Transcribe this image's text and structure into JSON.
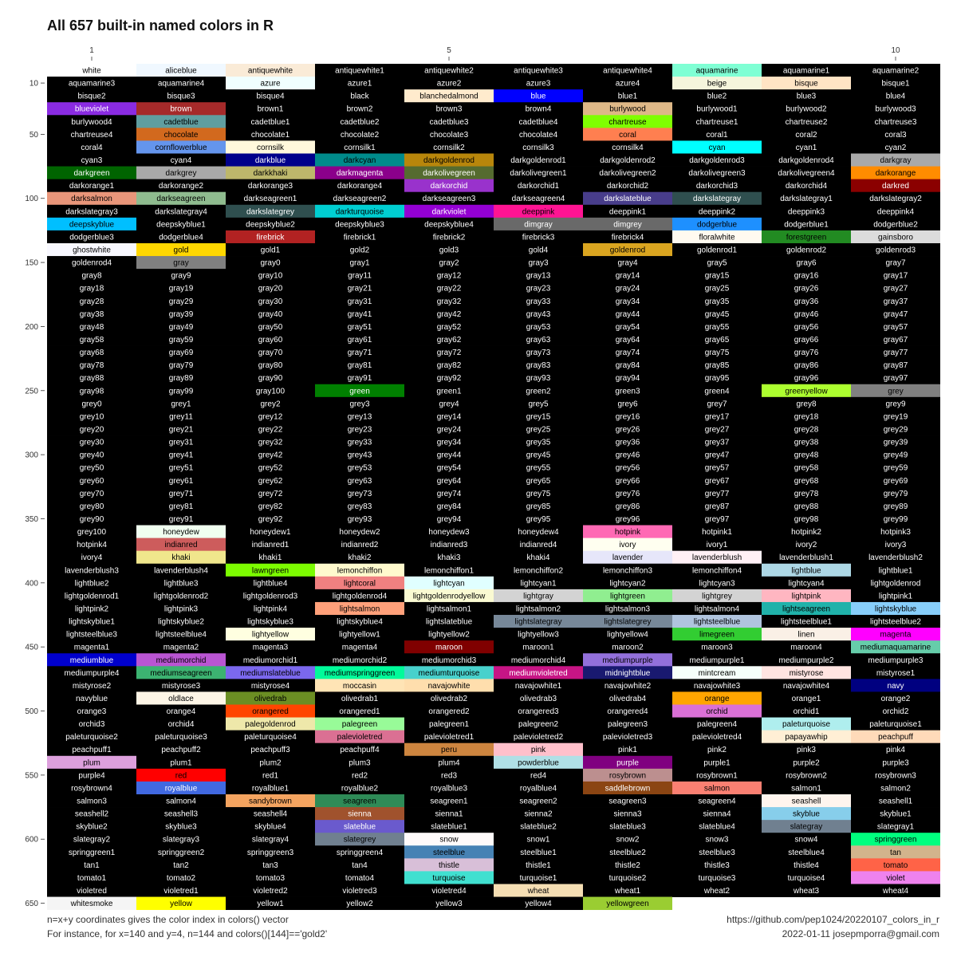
{
  "chart_data": {
    "type": "heatmap",
    "title": "All 657 built-in named colors in R",
    "x_ticks": [
      "1",
      "5",
      "10"
    ],
    "y_ticks": [
      "10",
      "50",
      "100",
      "150",
      "200",
      "250",
      "300",
      "350",
      "400",
      "450",
      "500",
      "550",
      "600",
      "650"
    ],
    "n_columns": 10,
    "n_colors": 657,
    "colors": [
      "white",
      "aliceblue",
      "antiquewhite",
      "antiquewhite1",
      "antiquewhite2",
      "antiquewhite3",
      "antiquewhite4",
      "aquamarine",
      "aquamarine1",
      "aquamarine2",
      "aquamarine3",
      "aquamarine4",
      "azure",
      "azure1",
      "azure2",
      "azure3",
      "azure4",
      "beige",
      "bisque",
      "bisque1",
      "bisque2",
      "bisque3",
      "bisque4",
      "black",
      "blanchedalmond",
      "blue",
      "blue1",
      "blue2",
      "blue3",
      "blue4",
      "blueviolet",
      "brown",
      "brown1",
      "brown2",
      "brown3",
      "brown4",
      "burlywood",
      "burlywood1",
      "burlywood2",
      "burlywood3",
      "burlywood4",
      "cadetblue",
      "cadetblue1",
      "cadetblue2",
      "cadetblue3",
      "cadetblue4",
      "chartreuse",
      "chartreuse1",
      "chartreuse2",
      "chartreuse3",
      "chartreuse4",
      "chocolate",
      "chocolate1",
      "chocolate2",
      "chocolate3",
      "chocolate4",
      "coral",
      "coral1",
      "coral2",
      "coral3",
      "coral4",
      "cornflowerblue",
      "cornsilk",
      "cornsilk1",
      "cornsilk2",
      "cornsilk3",
      "cornsilk4",
      "cyan",
      "cyan1",
      "cyan2",
      "cyan3",
      "cyan4",
      "darkblue",
      "darkcyan",
      "darkgoldenrod",
      "darkgoldenrod1",
      "darkgoldenrod2",
      "darkgoldenrod3",
      "darkgoldenrod4",
      "darkgray",
      "darkgreen",
      "darkgrey",
      "darkkhaki",
      "darkmagenta",
      "darkolivegreen",
      "darkolivegreen1",
      "darkolivegreen2",
      "darkolivegreen3",
      "darkolivegreen4",
      "darkorange",
      "darkorange1",
      "darkorange2",
      "darkorange3",
      "darkorange4",
      "darkorchid",
      "darkorchid1",
      "darkorchid2",
      "darkorchid3",
      "darkorchid4",
      "darkred",
      "darksalmon",
      "darkseagreen",
      "darkseagreen1",
      "darkseagreen2",
      "darkseagreen3",
      "darkseagreen4",
      "darkslateblue",
      "darkslategray",
      "darkslategray1",
      "darkslategray2",
      "darkslategray3",
      "darkslategray4",
      "darkslategrey",
      "darkturquoise",
      "darkviolet",
      "deeppink",
      "deeppink1",
      "deeppink2",
      "deeppink3",
      "deeppink4",
      "deepskyblue",
      "deepskyblue1",
      "deepskyblue2",
      "deepskyblue3",
      "deepskyblue4",
      "dimgray",
      "dimgrey",
      "dodgerblue",
      "dodgerblue1",
      "dodgerblue2",
      "dodgerblue3",
      "dodgerblue4",
      "firebrick",
      "firebrick1",
      "firebrick2",
      "firebrick3",
      "firebrick4",
      "floralwhite",
      "forestgreen",
      "gainsboro",
      "ghostwhite",
      "gold",
      "gold1",
      "gold2",
      "gold3",
      "gold4",
      "goldenrod",
      "goldenrod1",
      "goldenrod2",
      "goldenrod3",
      "goldenrod4",
      "gray",
      "gray0",
      "gray1",
      "gray2",
      "gray3",
      "gray4",
      "gray5",
      "gray6",
      "gray7",
      "gray8",
      "gray9",
      "gray10",
      "gray11",
      "gray12",
      "gray13",
      "gray14",
      "gray15",
      "gray16",
      "gray17",
      "gray18",
      "gray19",
      "gray20",
      "gray21",
      "gray22",
      "gray23",
      "gray24",
      "gray25",
      "gray26",
      "gray27",
      "gray28",
      "gray29",
      "gray30",
      "gray31",
      "gray32",
      "gray33",
      "gray34",
      "gray35",
      "gray36",
      "gray37",
      "gray38",
      "gray39",
      "gray40",
      "gray41",
      "gray42",
      "gray43",
      "gray44",
      "gray45",
      "gray46",
      "gray47",
      "gray48",
      "gray49",
      "gray50",
      "gray51",
      "gray52",
      "gray53",
      "gray54",
      "gray55",
      "gray56",
      "gray57",
      "gray58",
      "gray59",
      "gray60",
      "gray61",
      "gray62",
      "gray63",
      "gray64",
      "gray65",
      "gray66",
      "gray67",
      "gray68",
      "gray69",
      "gray70",
      "gray71",
      "gray72",
      "gray73",
      "gray74",
      "gray75",
      "gray76",
      "gray77",
      "gray78",
      "gray79",
      "gray80",
      "gray81",
      "gray82",
      "gray83",
      "gray84",
      "gray85",
      "gray86",
      "gray87",
      "gray88",
      "gray89",
      "gray90",
      "gray91",
      "gray92",
      "gray93",
      "gray94",
      "gray95",
      "gray96",
      "gray97",
      "gray98",
      "gray99",
      "gray100",
      "green",
      "green1",
      "green2",
      "green3",
      "green4",
      "greenyellow",
      "grey",
      "grey0",
      "grey1",
      "grey2",
      "grey3",
      "grey4",
      "grey5",
      "grey6",
      "grey7",
      "grey8",
      "grey9",
      "grey10",
      "grey11",
      "grey12",
      "grey13",
      "grey14",
      "grey15",
      "grey16",
      "grey17",
      "grey18",
      "grey19",
      "grey20",
      "grey21",
      "grey22",
      "grey23",
      "grey24",
      "grey25",
      "grey26",
      "grey27",
      "grey28",
      "grey29",
      "grey30",
      "grey31",
      "grey32",
      "grey33",
      "grey34",
      "grey35",
      "grey36",
      "grey37",
      "grey38",
      "grey39",
      "grey40",
      "grey41",
      "grey42",
      "grey43",
      "grey44",
      "grey45",
      "grey46",
      "grey47",
      "grey48",
      "grey49",
      "grey50",
      "grey51",
      "grey52",
      "grey53",
      "grey54",
      "grey55",
      "grey56",
      "grey57",
      "grey58",
      "grey59",
      "grey60",
      "grey61",
      "grey62",
      "grey63",
      "grey64",
      "grey65",
      "grey66",
      "grey67",
      "grey68",
      "grey69",
      "grey70",
      "grey71",
      "grey72",
      "grey73",
      "grey74",
      "grey75",
      "grey76",
      "grey77",
      "grey78",
      "grey79",
      "grey80",
      "grey81",
      "grey82",
      "grey83",
      "grey84",
      "grey85",
      "grey86",
      "grey87",
      "grey88",
      "grey89",
      "grey90",
      "grey91",
      "grey92",
      "grey93",
      "grey94",
      "grey95",
      "grey96",
      "grey97",
      "grey98",
      "grey99",
      "grey100",
      "honeydew",
      "honeydew1",
      "honeydew2",
      "honeydew3",
      "honeydew4",
      "hotpink",
      "hotpink1",
      "hotpink2",
      "hotpink3",
      "hotpink4",
      "indianred",
      "indianred1",
      "indianred2",
      "indianred3",
      "indianred4",
      "ivory",
      "ivory1",
      "ivory2",
      "ivory3",
      "ivory4",
      "khaki",
      "khaki1",
      "khaki2",
      "khaki3",
      "khaki4",
      "lavender",
      "lavenderblush",
      "lavenderblush1",
      "lavenderblush2",
      "lavenderblush3",
      "lavenderblush4",
      "lawngreen",
      "lemonchiffon",
      "lemonchiffon1",
      "lemonchiffon2",
      "lemonchiffon3",
      "lemonchiffon4",
      "lightblue",
      "lightblue1",
      "lightblue2",
      "lightblue3",
      "lightblue4",
      "lightcoral",
      "lightcyan",
      "lightcyan1",
      "lightcyan2",
      "lightcyan3",
      "lightcyan4",
      "lightgoldenrod",
      "lightgoldenrod1",
      "lightgoldenrod2",
      "lightgoldenrod3",
      "lightgoldenrod4",
      "lightgoldenrodyellow",
      "lightgray",
      "lightgreen",
      "lightgrey",
      "lightpink",
      "lightpink1",
      "lightpink2",
      "lightpink3",
      "lightpink4",
      "lightsalmon",
      "lightsalmon1",
      "lightsalmon2",
      "lightsalmon3",
      "lightsalmon4",
      "lightseagreen",
      "lightskyblue",
      "lightskyblue1",
      "lightskyblue2",
      "lightskyblue3",
      "lightskyblue4",
      "lightslateblue",
      "lightslategray",
      "lightslategrey",
      "lightsteelblue",
      "lightsteelblue1",
      "lightsteelblue2",
      "lightsteelblue3",
      "lightsteelblue4",
      "lightyellow",
      "lightyellow1",
      "lightyellow2",
      "lightyellow3",
      "lightyellow4",
      "limegreen",
      "linen",
      "magenta",
      "magenta1",
      "magenta2",
      "magenta3",
      "magenta4",
      "maroon",
      "maroon1",
      "maroon2",
      "maroon3",
      "maroon4",
      "mediumaquamarine",
      "mediumblue",
      "mediumorchid",
      "mediumorchid1",
      "mediumorchid2",
      "mediumorchid3",
      "mediumorchid4",
      "mediumpurple",
      "mediumpurple1",
      "mediumpurple2",
      "mediumpurple3",
      "mediumpurple4",
      "mediumseagreen",
      "mediumslateblue",
      "mediumspringgreen",
      "mediumturquoise",
      "mediumvioletred",
      "midnightblue",
      "mintcream",
      "mistyrose",
      "mistyrose1",
      "mistyrose2",
      "mistyrose3",
      "mistyrose4",
      "moccasin",
      "navajowhite",
      "navajowhite1",
      "navajowhite2",
      "navajowhite3",
      "navajowhite4",
      "navy",
      "navyblue",
      "oldlace",
      "olivedrab",
      "olivedrab1",
      "olivedrab2",
      "olivedrab3",
      "olivedrab4",
      "orange",
      "orange1",
      "orange2",
      "orange3",
      "orange4",
      "orangered",
      "orangered1",
      "orangered2",
      "orangered3",
      "orangered4",
      "orchid",
      "orchid1",
      "orchid2",
      "orchid3",
      "orchid4",
      "palegoldenrod",
      "palegreen",
      "palegreen1",
      "palegreen2",
      "palegreen3",
      "palegreen4",
      "paleturquoise",
      "paleturquoise1",
      "paleturquoise2",
      "paleturquoise3",
      "paleturquoise4",
      "palevioletred",
      "palevioletred1",
      "palevioletred2",
      "palevioletred3",
      "palevioletred4",
      "papayawhip",
      "peachpuff",
      "peachpuff1",
      "peachpuff2",
      "peachpuff3",
      "peachpuff4",
      "peru",
      "pink",
      "pink1",
      "pink2",
      "pink3",
      "pink4",
      "plum",
      "plum1",
      "plum2",
      "plum3",
      "plum4",
      "powderblue",
      "purple",
      "purple1",
      "purple2",
      "purple3",
      "purple4",
      "red",
      "red1",
      "red2",
      "red3",
      "red4",
      "rosybrown",
      "rosybrown1",
      "rosybrown2",
      "rosybrown3",
      "rosybrown4",
      "royalblue",
      "royalblue1",
      "royalblue2",
      "royalblue3",
      "royalblue4",
      "saddlebrown",
      "salmon",
      "salmon1",
      "salmon2",
      "salmon3",
      "salmon4",
      "sandybrown",
      "seagreen",
      "seagreen1",
      "seagreen2",
      "seagreen3",
      "seagreen4",
      "seashell",
      "seashell1",
      "seashell2",
      "seashell3",
      "seashell4",
      "sienna",
      "sienna1",
      "sienna2",
      "sienna3",
      "sienna4",
      "skyblue",
      "skyblue1",
      "skyblue2",
      "skyblue3",
      "skyblue4",
      "slateblue",
      "slateblue1",
      "slateblue2",
      "slateblue3",
      "slateblue4",
      "slategray",
      "slategray1",
      "slategray2",
      "slategray3",
      "slategray4",
      "slategrey",
      "snow",
      "snow1",
      "snow2",
      "snow3",
      "snow4",
      "springgreen",
      "springgreen1",
      "springgreen2",
      "springgreen3",
      "springgreen4",
      "steelblue",
      "steelblue1",
      "steelblue2",
      "steelblue3",
      "steelblue4",
      "tan",
      "tan1",
      "tan2",
      "tan3",
      "tan4",
      "thistle",
      "thistle1",
      "thistle2",
      "thistle3",
      "thistle4",
      "tomato",
      "tomato1",
      "tomato2",
      "tomato3",
      "tomato4",
      "turquoise",
      "turquoise1",
      "turquoise2",
      "turquoise3",
      "turquoise4",
      "violet",
      "violetred",
      "violetred1",
      "violetred2",
      "violetred3",
      "violetred4",
      "wheat",
      "wheat1",
      "wheat2",
      "wheat3",
      "wheat4",
      "whitesmoke",
      "yellow",
      "yellow1",
      "yellow2",
      "yellow3",
      "yellow4",
      "yellowgreen"
    ]
  },
  "caption": {
    "left_1": "n=x+y coordinates gives the color index in colors() vector",
    "left_2": "For instance, for x=140 and y=4, n=144 and colors()[144]=='gold2'",
    "right_1": "https://github.com/pep1024/20220107_colors_in_r",
    "right_2": "2022-01-11 josepmporra@gmail.com"
  }
}
